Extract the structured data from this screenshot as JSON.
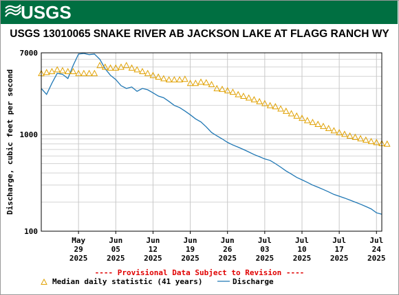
{
  "banner": {
    "logo_text": "USGS",
    "color": "#006f41"
  },
  "chart_data": {
    "type": "line",
    "title": "USGS 13010065 SNAKE RIVER AB JACKSON LAKE AT FLAGG RANCH WY",
    "ylabel": "Discharge, cubic feet per second",
    "yscale": "log",
    "ylim": [
      100,
      7000
    ],
    "y_ticks": [
      {
        "value": 100,
        "label": "100"
      },
      {
        "value": 1000,
        "label": "1000"
      },
      {
        "value": 7000,
        "label": "7000"
      }
    ],
    "xlim": [
      "2025-05-22",
      "2025-07-25"
    ],
    "x_ticks": [
      {
        "date": "2025-05-29",
        "month": "May",
        "day": "29",
        "year": "2025"
      },
      {
        "date": "2025-06-05",
        "month": "Jun",
        "day": "05",
        "year": "2025"
      },
      {
        "date": "2025-06-12",
        "month": "Jun",
        "day": "12",
        "year": "2025"
      },
      {
        "date": "2025-06-19",
        "month": "Jun",
        "day": "19",
        "year": "2025"
      },
      {
        "date": "2025-06-26",
        "month": "Jun",
        "day": "26",
        "year": "2025"
      },
      {
        "date": "2025-07-03",
        "month": "Jul",
        "day": "03",
        "year": "2025"
      },
      {
        "date": "2025-07-10",
        "month": "Jul",
        "day": "10",
        "year": "2025"
      },
      {
        "date": "2025-07-17",
        "month": "Jul",
        "day": "17",
        "year": "2025"
      },
      {
        "date": "2025-07-24",
        "month": "Jul",
        "day": "24",
        "year": "2025"
      }
    ],
    "grid": true,
    "provisional_note": "---- Provisional Data Subject to Revision ----",
    "series": [
      {
        "name": "Median daily statistic (41 years)",
        "style": "triangle-markers",
        "color": "#e0a000",
        "points": [
          [
            "2025-05-22",
            4300
          ],
          [
            "2025-05-23",
            4400
          ],
          [
            "2025-05-24",
            4500
          ],
          [
            "2025-05-25",
            4700
          ],
          [
            "2025-05-26",
            4600
          ],
          [
            "2025-05-27",
            4500
          ],
          [
            "2025-05-28",
            4500
          ],
          [
            "2025-05-29",
            4300
          ],
          [
            "2025-05-30",
            4300
          ],
          [
            "2025-05-31",
            4300
          ],
          [
            "2025-06-01",
            4300
          ],
          [
            "2025-06-02",
            5200
          ],
          [
            "2025-06-03",
            5000
          ],
          [
            "2025-06-04",
            4900
          ],
          [
            "2025-06-05",
            4900
          ],
          [
            "2025-06-06",
            5000
          ],
          [
            "2025-06-07",
            5200
          ],
          [
            "2025-06-08",
            4900
          ],
          [
            "2025-06-09",
            4700
          ],
          [
            "2025-06-10",
            4500
          ],
          [
            "2025-06-11",
            4300
          ],
          [
            "2025-06-12",
            4100
          ],
          [
            "2025-06-13",
            3950
          ],
          [
            "2025-06-14",
            3800
          ],
          [
            "2025-06-15",
            3700
          ],
          [
            "2025-06-16",
            3700
          ],
          [
            "2025-06-17",
            3700
          ],
          [
            "2025-06-18",
            3750
          ],
          [
            "2025-06-19",
            3400
          ],
          [
            "2025-06-20",
            3400
          ],
          [
            "2025-06-21",
            3500
          ],
          [
            "2025-06-22",
            3450
          ],
          [
            "2025-06-23",
            3300
          ],
          [
            "2025-06-24",
            3000
          ],
          [
            "2025-06-25",
            2950
          ],
          [
            "2025-06-26",
            2850
          ],
          [
            "2025-06-27",
            2750
          ],
          [
            "2025-06-28",
            2600
          ],
          [
            "2025-06-29",
            2500
          ],
          [
            "2025-06-30",
            2400
          ],
          [
            "2025-07-01",
            2300
          ],
          [
            "2025-07-02",
            2200
          ],
          [
            "2025-07-03",
            2100
          ],
          [
            "2025-07-04",
            2000
          ],
          [
            "2025-07-05",
            1950
          ],
          [
            "2025-07-06",
            1850
          ],
          [
            "2025-07-07",
            1750
          ],
          [
            "2025-07-08",
            1650
          ],
          [
            "2025-07-09",
            1560
          ],
          [
            "2025-07-10",
            1480
          ],
          [
            "2025-07-11",
            1400
          ],
          [
            "2025-07-12",
            1340
          ],
          [
            "2025-07-13",
            1280
          ],
          [
            "2025-07-14",
            1220
          ],
          [
            "2025-07-15",
            1160
          ],
          [
            "2025-07-16",
            1100
          ],
          [
            "2025-07-17",
            1050
          ],
          [
            "2025-07-18",
            1010
          ],
          [
            "2025-07-19",
            970
          ],
          [
            "2025-07-20",
            940
          ],
          [
            "2025-07-21",
            910
          ],
          [
            "2025-07-22",
            880
          ],
          [
            "2025-07-23",
            850
          ],
          [
            "2025-07-24",
            830
          ],
          [
            "2025-07-25",
            810
          ],
          [
            "2025-07-26",
            800
          ]
        ]
      },
      {
        "name": "Discharge",
        "style": "line",
        "color": "#1f77b4",
        "points": [
          [
            "2025-05-22",
            3000
          ],
          [
            "2025-05-23",
            2600
          ],
          [
            "2025-05-24",
            3400
          ],
          [
            "2025-05-25",
            4300
          ],
          [
            "2025-05-26",
            4200
          ],
          [
            "2025-05-27",
            3800
          ],
          [
            "2025-05-28",
            5200
          ],
          [
            "2025-05-29",
            6800
          ],
          [
            "2025-05-30",
            6900
          ],
          [
            "2025-05-31",
            6700
          ],
          [
            "2025-06-01",
            6800
          ],
          [
            "2025-06-02",
            6000
          ],
          [
            "2025-06-03",
            4800
          ],
          [
            "2025-06-04",
            4100
          ],
          [
            "2025-06-05",
            3700
          ],
          [
            "2025-06-06",
            3200
          ],
          [
            "2025-06-07",
            3000
          ],
          [
            "2025-06-08",
            3100
          ],
          [
            "2025-06-09",
            2800
          ],
          [
            "2025-06-10",
            3000
          ],
          [
            "2025-06-11",
            2900
          ],
          [
            "2025-06-12",
            2700
          ],
          [
            "2025-06-13",
            2500
          ],
          [
            "2025-06-14",
            2400
          ],
          [
            "2025-06-15",
            2200
          ],
          [
            "2025-06-16",
            2000
          ],
          [
            "2025-06-17",
            1900
          ],
          [
            "2025-06-18",
            1750
          ],
          [
            "2025-06-19",
            1600
          ],
          [
            "2025-06-20",
            1450
          ],
          [
            "2025-06-21",
            1350
          ],
          [
            "2025-06-22",
            1200
          ],
          [
            "2025-06-23",
            1050
          ],
          [
            "2025-06-24",
            970
          ],
          [
            "2025-06-25",
            900
          ],
          [
            "2025-06-26",
            830
          ],
          [
            "2025-06-27",
            780
          ],
          [
            "2025-06-28",
            740
          ],
          [
            "2025-06-29",
            700
          ],
          [
            "2025-06-30",
            660
          ],
          [
            "2025-07-01",
            620
          ],
          [
            "2025-07-02",
            590
          ],
          [
            "2025-07-03",
            560
          ],
          [
            "2025-07-04",
            540
          ],
          [
            "2025-07-05",
            500
          ],
          [
            "2025-07-06",
            460
          ],
          [
            "2025-07-07",
            420
          ],
          [
            "2025-07-08",
            390
          ],
          [
            "2025-07-09",
            360
          ],
          [
            "2025-07-10",
            340
          ],
          [
            "2025-07-11",
            320
          ],
          [
            "2025-07-12",
            300
          ],
          [
            "2025-07-13",
            285
          ],
          [
            "2025-07-14",
            270
          ],
          [
            "2025-07-15",
            255
          ],
          [
            "2025-07-16",
            240
          ],
          [
            "2025-07-17",
            230
          ],
          [
            "2025-07-18",
            220
          ],
          [
            "2025-07-19",
            210
          ],
          [
            "2025-07-20",
            200
          ],
          [
            "2025-07-21",
            190
          ],
          [
            "2025-07-22",
            180
          ],
          [
            "2025-07-23",
            170
          ],
          [
            "2025-07-24",
            155
          ],
          [
            "2025-07-25",
            150
          ]
        ]
      }
    ]
  }
}
